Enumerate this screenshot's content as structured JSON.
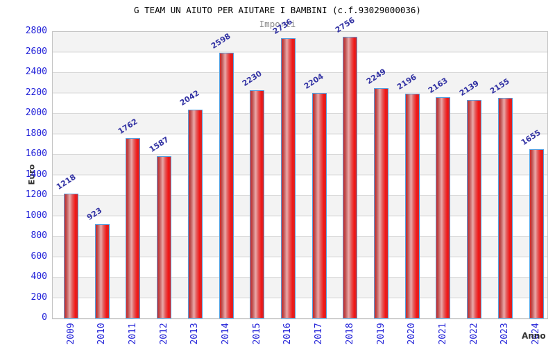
{
  "chart_data": {
    "type": "bar",
    "title": "G TEAM UN AIUTO PER AIUTARE I BAMBINI (c.f.93029000036)",
    "subtitle": "Importi",
    "xlabel": "Anno",
    "ylabel": "Euro",
    "categories": [
      "2009",
      "2010",
      "2011",
      "2012",
      "2013",
      "2014",
      "2015",
      "2016",
      "2017",
      "2018",
      "2019",
      "2020",
      "2021",
      "2022",
      "2023",
      "2024"
    ],
    "values": [
      1218,
      923,
      1762,
      1587,
      2042,
      2598,
      2230,
      2736,
      2204,
      2756,
      2249,
      2196,
      2163,
      2139,
      2155,
      1655
    ],
    "ylim": [
      0,
      2800
    ],
    "ytick_step": 200,
    "legend_position": "none",
    "grid": "horizontal gridlines with alternating shaded bands every 200 units",
    "colors": {
      "bar_fill_main": "#e02020",
      "bar_highlight": "#eba9a9",
      "bar_border": "#55a0e0",
      "tick_label": "#2020d8",
      "value_label": "#3434a4",
      "axis_title": "#333333",
      "band_shade": "#f3f3f3",
      "title_text": "#000000",
      "subtitle_text": "#8a8a8a"
    }
  }
}
